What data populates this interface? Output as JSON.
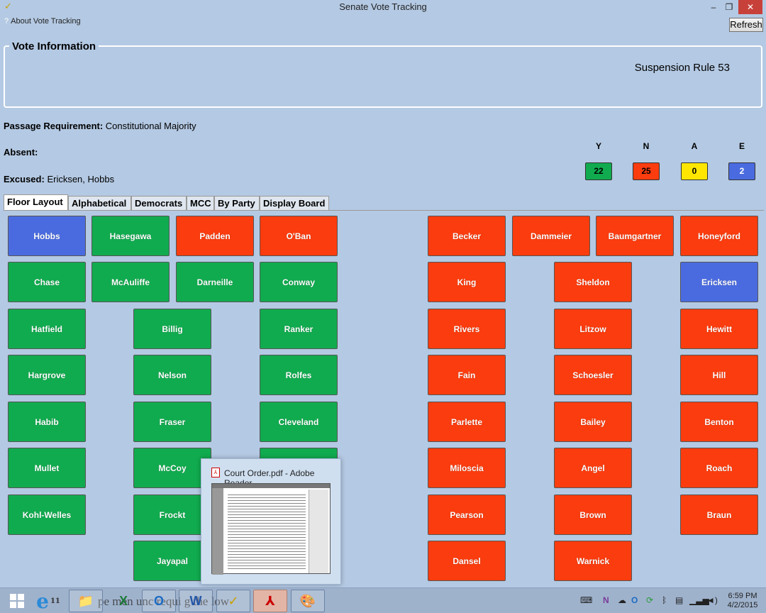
{
  "window": {
    "title": "Senate Vote Tracking",
    "minimize_glyph": "–",
    "maximize_glyph": "❐",
    "close_glyph": "✕",
    "app_icon_glyph": "✓",
    "app_icon": "checkmark-icon"
  },
  "menu": {
    "about_icon": "?",
    "about_label": "About Vote Tracking",
    "refresh_label": "Refresh"
  },
  "vote_info": {
    "legend": "Vote Information",
    "motion": "Suspension Rule 53"
  },
  "details": {
    "passage_label": "Passage Requirement:",
    "passage_value": "Constitutional Majority",
    "absent_label": "Absent:",
    "absent_value": "",
    "excused_label": "Excused:",
    "excused_value": "Ericksen, Hobbs"
  },
  "tally": {
    "yes": {
      "label": "Y",
      "value": "22",
      "color": "#11ab4f"
    },
    "no": {
      "label": "N",
      "value": "25",
      "color": "#fb3c0e"
    },
    "absent": {
      "label": "A",
      "value": "0",
      "color": "#ffe600"
    },
    "excused": {
      "label": "E",
      "value": "2",
      "color": "#4a6be0"
    }
  },
  "tabs": [
    "Floor Layout",
    "Alphabetical",
    "Democrats",
    "MCC",
    "By Party",
    "Display Board"
  ],
  "active_tab": "Floor Layout",
  "vote_colors": {
    "Y": "#11ab4f",
    "N": "#fb3c0e",
    "E": "#4a6be0"
  },
  "seats": [
    {
      "name": "Hobbs",
      "vote": "E"
    },
    {
      "name": "Hasegawa",
      "vote": "Y"
    },
    {
      "name": "Padden",
      "vote": "N"
    },
    {
      "name": "O'Ban",
      "vote": "N"
    },
    {
      "name": "Chase",
      "vote": "Y"
    },
    {
      "name": "McAuliffe",
      "vote": "Y"
    },
    {
      "name": "Darneille",
      "vote": "Y"
    },
    {
      "name": "Conway",
      "vote": "Y"
    },
    {
      "name": "Hatfield",
      "vote": "Y"
    },
    {
      "name": "Billig",
      "vote": "Y"
    },
    {
      "name": "Ranker",
      "vote": "Y"
    },
    {
      "name": "Hargrove",
      "vote": "Y"
    },
    {
      "name": "Nelson",
      "vote": "Y"
    },
    {
      "name": "Rolfes",
      "vote": "Y"
    },
    {
      "name": "Habib",
      "vote": "Y"
    },
    {
      "name": "Fraser",
      "vote": "Y"
    },
    {
      "name": "Cleveland",
      "vote": "Y"
    },
    {
      "name": "Mullet",
      "vote": "Y"
    },
    {
      "name": "McCoy",
      "vote": "Y"
    },
    {
      "name": "",
      "vote": "Y"
    },
    {
      "name": "Kohl-Welles",
      "vote": "Y"
    },
    {
      "name": "Frockt",
      "vote": "Y"
    },
    {
      "name": "Jayapal",
      "vote": "Y"
    },
    {
      "name": "Becker",
      "vote": "N"
    },
    {
      "name": "Dammeier",
      "vote": "N"
    },
    {
      "name": "Baumgartner",
      "vote": "N"
    },
    {
      "name": "Honeyford",
      "vote": "N"
    },
    {
      "name": "King",
      "vote": "N"
    },
    {
      "name": "Sheldon",
      "vote": "N"
    },
    {
      "name": "Ericksen",
      "vote": "E"
    },
    {
      "name": "Rivers",
      "vote": "N"
    },
    {
      "name": "Litzow",
      "vote": "N"
    },
    {
      "name": "Hewitt",
      "vote": "N"
    },
    {
      "name": "Fain",
      "vote": "N"
    },
    {
      "name": "Schoesler",
      "vote": "N"
    },
    {
      "name": "Hill",
      "vote": "N"
    },
    {
      "name": "Parlette",
      "vote": "N"
    },
    {
      "name": "Bailey",
      "vote": "N"
    },
    {
      "name": "Benton",
      "vote": "N"
    },
    {
      "name": "Miloscia",
      "vote": "N"
    },
    {
      "name": "Angel",
      "vote": "N"
    },
    {
      "name": "Roach",
      "vote": "N"
    },
    {
      "name": "Pearson",
      "vote": "N"
    },
    {
      "name": "Brown",
      "vote": "N"
    },
    {
      "name": "Braun",
      "vote": "N"
    },
    {
      "name": "Dansel",
      "vote": "N"
    },
    {
      "name": "Warnick",
      "vote": "N"
    }
  ],
  "thumbnail": {
    "title": "Court Order.pdf - Adobe Reader",
    "icon": "pdf-icon"
  },
  "taskbar": {
    "background_text": "pe  men   unc   requi   g  the   low",
    "ie_badge": "11",
    "apps": [
      {
        "name": "start",
        "icon": "windows-start-icon"
      },
      {
        "name": "internet-explorer",
        "icon": "internet-explorer-icon",
        "glyph": "e"
      },
      {
        "name": "file-explorer",
        "icon": "folder-icon",
        "glyph": "📁"
      },
      {
        "name": "excel",
        "icon": "excel-icon",
        "glyph": "X"
      },
      {
        "name": "outlook",
        "icon": "outlook-icon",
        "glyph": "O"
      },
      {
        "name": "word",
        "icon": "word-icon",
        "glyph": "W"
      },
      {
        "name": "vote-tracking",
        "icon": "checkmark-icon",
        "glyph": "✓"
      },
      {
        "name": "adobe-reader",
        "icon": "adobe-reader-icon",
        "glyph": "⅄"
      },
      {
        "name": "paint",
        "icon": "paint-icon",
        "glyph": "🎨"
      }
    ],
    "tray_icons": [
      "keyboard-icon",
      "onenote-icon",
      "cloud-icon",
      "outlook-tray-icon",
      "sync-icon",
      "bluetooth-icon",
      "network-icon",
      "signal-icon",
      "volume-icon"
    ],
    "time": "6:59 PM",
    "date": "4/2/2015"
  }
}
